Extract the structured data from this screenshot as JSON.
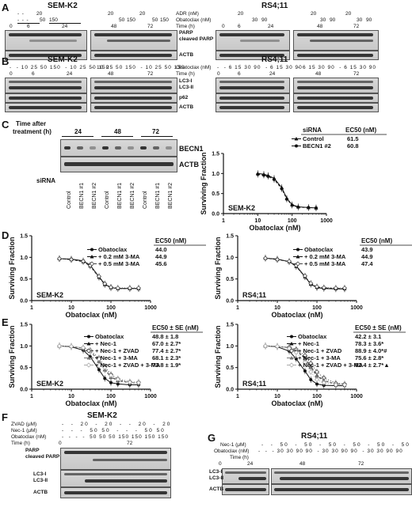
{
  "panels": {
    "A": {
      "letter": "A",
      "left_title": "SEM-K2",
      "right_title": "RS4;11",
      "left_rows": [
        {
          "label": "ADR (nM)",
          "vals": [
            "-",
            "-",
            "20",
            "-",
            "-",
            "-",
            "20",
            "-",
            "-",
            "-"
          ]
        },
        {
          "label": "Obatoclax (nM)",
          "vals": [
            "-",
            "-",
            "-",
            "50",
            "150",
            "-",
            "-",
            "50",
            "150"
          ]
        },
        {
          "label": "Time (h)",
          "vals": [
            "0",
            "6",
            "24"
          ]
        }
      ],
      "header_left": {
        "adr": "20",
        "obat1": "50",
        "obat2": "150",
        "time0": "0",
        "time6": "6",
        "time24": "24"
      },
      "header_left2": {
        "adr": "20",
        "obat1": "50",
        "obat2": "150",
        "time48": "48",
        "time72": "72"
      },
      "header_right": {
        "adr": "20",
        "obat1": "30",
        "obat2": "90",
        "time0": "0",
        "time6": "6",
        "time24": "24"
      },
      "header_right2": {
        "adr": "20",
        "obat1": "30",
        "obat2": "90",
        "time48": "48",
        "time72": "72"
      },
      "mid_labels": {
        "adr": "ADR (nM)",
        "obat": "Obatoclax (nM)",
        "time": "Time (h)"
      },
      "blot_labels": [
        "PARP",
        "cleaved PARP",
        "ACTB"
      ]
    },
    "B": {
      "letter": "B",
      "left_title": "SEM-K2",
      "right_title": "RS4;11",
      "left_obat": [
        "-",
        "10",
        "25",
        "50",
        "150",
        "-",
        "10",
        "25",
        "50",
        "150"
      ],
      "left_obat2": [
        "-",
        "10",
        "25",
        "50",
        "150",
        "-",
        "10",
        "25",
        "50",
        "150"
      ],
      "right_obat": [
        "-",
        "6",
        "15",
        "30",
        "90",
        "-",
        "6",
        "15",
        "30",
        "90"
      ],
      "right_obat2": [
        "-",
        "6",
        "15",
        "30",
        "90",
        "-",
        "6",
        "15",
        "30",
        "90"
      ],
      "time_left": {
        "t0": "0",
        "t6": "6",
        "t24": "24",
        "t48": "48",
        "t72": "72"
      },
      "time_right": {
        "t0": "0",
        "t6": "6",
        "t24": "24",
        "t48": "48",
        "t72": "72"
      },
      "mid_labels": {
        "obat": "Obatoclax (nM)",
        "time": "Time (h)"
      },
      "blot_labels": [
        "LC3-I",
        "LC3-II",
        "p62",
        "ACTB"
      ]
    },
    "C": {
      "letter": "C",
      "time_label_1": "Time after",
      "time_label_2": "treatment (h)",
      "times": [
        "24",
        "48",
        "72"
      ],
      "blot_labels": [
        "BECN1",
        "ACTB"
      ],
      "sirna": "siRNA",
      "lanes": [
        "Control",
        "BECN1 #1",
        "BECN1 #2",
        "Control",
        "BECN1 #1",
        "BECN1 #2",
        "Control",
        "BECN1 #1",
        "BECN1 #2"
      ]
    },
    "D": {
      "letter": "D"
    },
    "E": {
      "letter": "E"
    },
    "F": {
      "letter": "F",
      "title": "SEM-K2",
      "row_labels": [
        "ZVAD (μM)",
        "Nec-1 (μM)",
        "Obatoclax (nM)",
        "Time (h)"
      ],
      "zvad": [
        "-",
        "-",
        "20",
        "-",
        "20",
        "-",
        "-",
        "20",
        "-",
        "20"
      ],
      "nec1": [
        "-",
        "-",
        "-",
        "50",
        "50",
        "-",
        "-",
        "-",
        "50",
        "50"
      ],
      "obat": [
        "-",
        "-",
        "-",
        "-",
        "50",
        "50",
        "50",
        "150",
        "150",
        "150",
        "150"
      ],
      "time": {
        "t0": "0",
        "t72": "72"
      },
      "blot_labels": [
        "PARP",
        "cleaved PARP",
        "LC3-I",
        "LC3-II",
        "ACTB"
      ]
    },
    "G": {
      "letter": "G",
      "title": "RS4;11",
      "row_labels": [
        "Nec-1 (μM)",
        "Obatoclax (nM)",
        "Time (h)"
      ],
      "nec1": [
        "-",
        "-",
        "50",
        "-",
        "50",
        "-",
        "50",
        "-",
        "50",
        "-",
        "50",
        "-",
        "50"
      ],
      "obat": [
        "-",
        "-",
        "-",
        "30",
        "30",
        "90",
        "90",
        "-",
        "30",
        "30",
        "90",
        "90",
        "-",
        "30",
        "30",
        "90",
        "90"
      ],
      "time": {
        "t0": "0",
        "t24": "24",
        "t48": "48",
        "t72": "72"
      },
      "blot_labels": [
        "LC3-I",
        "LC3-II",
        "ACTB"
      ]
    }
  },
  "chart_data": [
    {
      "id": "C-chart",
      "type": "line",
      "title": "",
      "xlabel": "Obatoclax (nM)",
      "ylabel": "Surviving Fraction",
      "xscale": "log",
      "xlim": [
        1,
        1000
      ],
      "ylim": [
        0,
        1.5
      ],
      "xticks": [
        "1",
        "10",
        "100",
        "1000"
      ],
      "yticks": [
        "0.0",
        "0.5",
        "1.0",
        "1.5"
      ],
      "cell_line": "SEM-K2",
      "legend_header": [
        "siRNA",
        "EC50 (nM)"
      ],
      "series": [
        {
          "name": "Control",
          "ec50": "61.5",
          "marker": "triangle",
          "x": [
            10,
            15,
            20,
            30,
            50,
            70,
            100,
            150,
            300,
            500
          ],
          "y": [
            1.0,
            0.98,
            0.95,
            0.88,
            0.65,
            0.38,
            0.22,
            0.17,
            0.15,
            0.14
          ]
        },
        {
          "name": "BECN1 #2",
          "ec50": "60.8",
          "marker": "circle",
          "x": [
            10,
            15,
            20,
            30,
            50,
            70,
            100,
            150,
            300,
            500
          ],
          "y": [
            0.98,
            0.96,
            0.93,
            0.85,
            0.62,
            0.36,
            0.21,
            0.16,
            0.15,
            0.14
          ]
        }
      ]
    },
    {
      "id": "D-left",
      "type": "line",
      "xlabel": "Obatoclax (nM)",
      "ylabel": "Surviving Fraction",
      "xscale": "log",
      "xlim": [
        1,
        1000
      ],
      "ylim": [
        0,
        1.5
      ],
      "xticks": [
        "1",
        "10",
        "100",
        "1000"
      ],
      "yticks": [
        "0.0",
        "0.5",
        "1.0",
        "1.5"
      ],
      "cell_line": "SEM-K2",
      "legend_header": "EC50 (nM)",
      "series": [
        {
          "name": "Obatoclax",
          "ec50": "44.0",
          "marker": "circle",
          "x": [
            5,
            10,
            20,
            30,
            50,
            70,
            100,
            150,
            300,
            500
          ],
          "y": [
            0.97,
            0.96,
            0.92,
            0.82,
            0.55,
            0.38,
            0.3,
            0.28,
            0.28,
            0.28
          ]
        },
        {
          "name": "+ 0.2 mM 3-MA",
          "ec50": "44.9",
          "marker": "triangle",
          "x": [
            5,
            10,
            20,
            30,
            50,
            70,
            100,
            150,
            300,
            500
          ],
          "y": [
            0.97,
            0.95,
            0.9,
            0.8,
            0.54,
            0.37,
            0.3,
            0.28,
            0.28,
            0.28
          ]
        },
        {
          "name": "+ 0.5 mM 3-MA",
          "ec50": "45.6",
          "marker": "diamond",
          "x": [
            5,
            10,
            20,
            30,
            50,
            70,
            100,
            150,
            300,
            500
          ],
          "y": [
            0.97,
            0.95,
            0.91,
            0.81,
            0.56,
            0.39,
            0.31,
            0.29,
            0.29,
            0.29
          ]
        }
      ]
    },
    {
      "id": "D-right",
      "type": "line",
      "xlabel": "Obatoclax (nM)",
      "ylabel": "Surviving Fraction",
      "xscale": "log",
      "xlim": [
        1,
        1000
      ],
      "ylim": [
        0,
        1.5
      ],
      "xticks": [
        "1",
        "10",
        "100",
        "1000"
      ],
      "yticks": [
        "0.0",
        "0.5",
        "1.0",
        "1.5"
      ],
      "cell_line": "RS4;11",
      "legend_header": "EC50 (nM)",
      "series": [
        {
          "name": "Obatoclax",
          "ec50": "43.9",
          "marker": "circle",
          "x": [
            5,
            10,
            20,
            30,
            50,
            70,
            100,
            150,
            300,
            500
          ],
          "y": [
            0.98,
            0.96,
            0.9,
            0.8,
            0.55,
            0.38,
            0.3,
            0.28,
            0.27,
            0.27
          ]
        },
        {
          "name": "+ 0.2 mM 3-MA",
          "ec50": "44.9",
          "marker": "triangle",
          "x": [
            5,
            10,
            20,
            30,
            50,
            70,
            100,
            150,
            300,
            500
          ],
          "y": [
            0.98,
            0.95,
            0.9,
            0.79,
            0.55,
            0.38,
            0.31,
            0.29,
            0.28,
            0.28
          ]
        },
        {
          "name": "+ 0.5 mM 3-MA",
          "ec50": "47.4",
          "marker": "diamond",
          "x": [
            5,
            10,
            20,
            30,
            50,
            70,
            100,
            150,
            300,
            500
          ],
          "y": [
            0.98,
            0.95,
            0.91,
            0.81,
            0.57,
            0.4,
            0.32,
            0.3,
            0.29,
            0.29
          ]
        }
      ]
    },
    {
      "id": "E-left",
      "type": "line",
      "xlabel": "Obatoclax (nM)",
      "ylabel": "Surviving Fraction",
      "xscale": "log",
      "xlim": [
        1,
        1000
      ],
      "ylim": [
        0,
        1.5
      ],
      "xticks": [
        "1",
        "10",
        "100",
        "1000"
      ],
      "yticks": [
        "0.0",
        "0.5",
        "1.0",
        "1.5"
      ],
      "cell_line": "SEM-K2",
      "legend_header": "EC50 ± SE (nM)",
      "series": [
        {
          "name": "Obatoclax",
          "ec50": "48.8 ± 1.8",
          "marker": "circle",
          "x": [
            5,
            10,
            20,
            30,
            50,
            70,
            100,
            150,
            300,
            500
          ],
          "y": [
            1.0,
            0.98,
            0.9,
            0.75,
            0.45,
            0.25,
            0.15,
            0.12,
            0.1,
            0.1
          ]
        },
        {
          "name": "+ Nec-1",
          "ec50": "67.0 ± 2.7*",
          "marker": "triangle",
          "x": [
            5,
            10,
            20,
            30,
            50,
            70,
            100,
            150,
            300,
            500
          ],
          "y": [
            1.0,
            0.99,
            0.95,
            0.88,
            0.65,
            0.45,
            0.28,
            0.2,
            0.15,
            0.14
          ]
        },
        {
          "name": "+ Nec-1 + ZVAD",
          "ec50": "77.4 ± 2.7*",
          "marker": "diamond",
          "x": [
            5,
            10,
            20,
            30,
            50,
            70,
            100,
            150,
            300,
            500
          ],
          "y": [
            1.0,
            0.99,
            0.96,
            0.9,
            0.72,
            0.52,
            0.34,
            0.24,
            0.17,
            0.16
          ]
        },
        {
          "name": "+ Nec-1 + 3-MA",
          "ec50": "68.1 ± 2.3*",
          "marker": "triangle",
          "x": [
            5,
            10,
            20,
            30,
            50,
            70,
            100,
            150,
            300,
            500
          ],
          "y": [
            1.0,
            0.99,
            0.95,
            0.88,
            0.66,
            0.46,
            0.29,
            0.21,
            0.15,
            0.14
          ]
        },
        {
          "name": "+ Nec-1 + ZVAD + 3-MA",
          "ec50": "73.8 ± 1.9*",
          "marker": "diamond",
          "x": [
            5,
            10,
            20,
            30,
            50,
            70,
            100,
            150,
            300,
            500
          ],
          "y": [
            1.0,
            0.99,
            0.96,
            0.89,
            0.7,
            0.5,
            0.32,
            0.23,
            0.16,
            0.15
          ]
        }
      ]
    },
    {
      "id": "E-right",
      "type": "line",
      "xlabel": "Obatoclax (nM)",
      "ylabel": "Surviving Fraction",
      "xscale": "log",
      "xlim": [
        1,
        1000
      ],
      "ylim": [
        0,
        1.5
      ],
      "xticks": [
        "1",
        "10",
        "100",
        "1000"
      ],
      "yticks": [
        "0.0",
        "0.5",
        "1.0",
        "1.5"
      ],
      "cell_line": "RS4;11",
      "legend_header": "EC50 ± SE (nM)",
      "series": [
        {
          "name": "Obatoclax",
          "ec50": "42.2 ± 3.1",
          "marker": "circle",
          "x": [
            5,
            10,
            20,
            30,
            50,
            70,
            100,
            150,
            300,
            500
          ],
          "y": [
            1.0,
            0.98,
            0.88,
            0.7,
            0.42,
            0.22,
            0.12,
            0.09,
            0.08,
            0.08
          ]
        },
        {
          "name": "+ Nec-1",
          "ec50": "78.3 ± 3.6*",
          "marker": "triangle",
          "x": [
            5,
            10,
            20,
            30,
            50,
            70,
            100,
            150,
            300,
            500
          ],
          "y": [
            1.0,
            0.99,
            0.96,
            0.9,
            0.72,
            0.52,
            0.32,
            0.2,
            0.12,
            0.11
          ]
        },
        {
          "name": "+ Nec-1 + ZVAD",
          "ec50": "88.9 ± 4.0*#",
          "marker": "diamond",
          "x": [
            5,
            10,
            20,
            30,
            50,
            70,
            100,
            150,
            300,
            500
          ],
          "y": [
            1.0,
            0.99,
            0.97,
            0.92,
            0.78,
            0.6,
            0.4,
            0.26,
            0.14,
            0.12
          ]
        },
        {
          "name": "+ Nec-1 + 3-MA",
          "ec50": "75.6 ± 2.8*",
          "marker": "triangle",
          "x": [
            5,
            10,
            20,
            30,
            50,
            70,
            100,
            150,
            300,
            500
          ],
          "y": [
            1.0,
            0.99,
            0.96,
            0.89,
            0.7,
            0.5,
            0.3,
            0.19,
            0.12,
            0.11
          ]
        },
        {
          "name": "+ Nec-1 + ZVAD + 3-MA",
          "ec50": "62.4 ± 2.7*▲",
          "marker": "diamond",
          "x": [
            5,
            10,
            20,
            30,
            50,
            70,
            100,
            150,
            300,
            500
          ],
          "y": [
            1.0,
            0.99,
            0.94,
            0.85,
            0.62,
            0.4,
            0.22,
            0.15,
            0.1,
            0.1
          ]
        }
      ]
    }
  ]
}
